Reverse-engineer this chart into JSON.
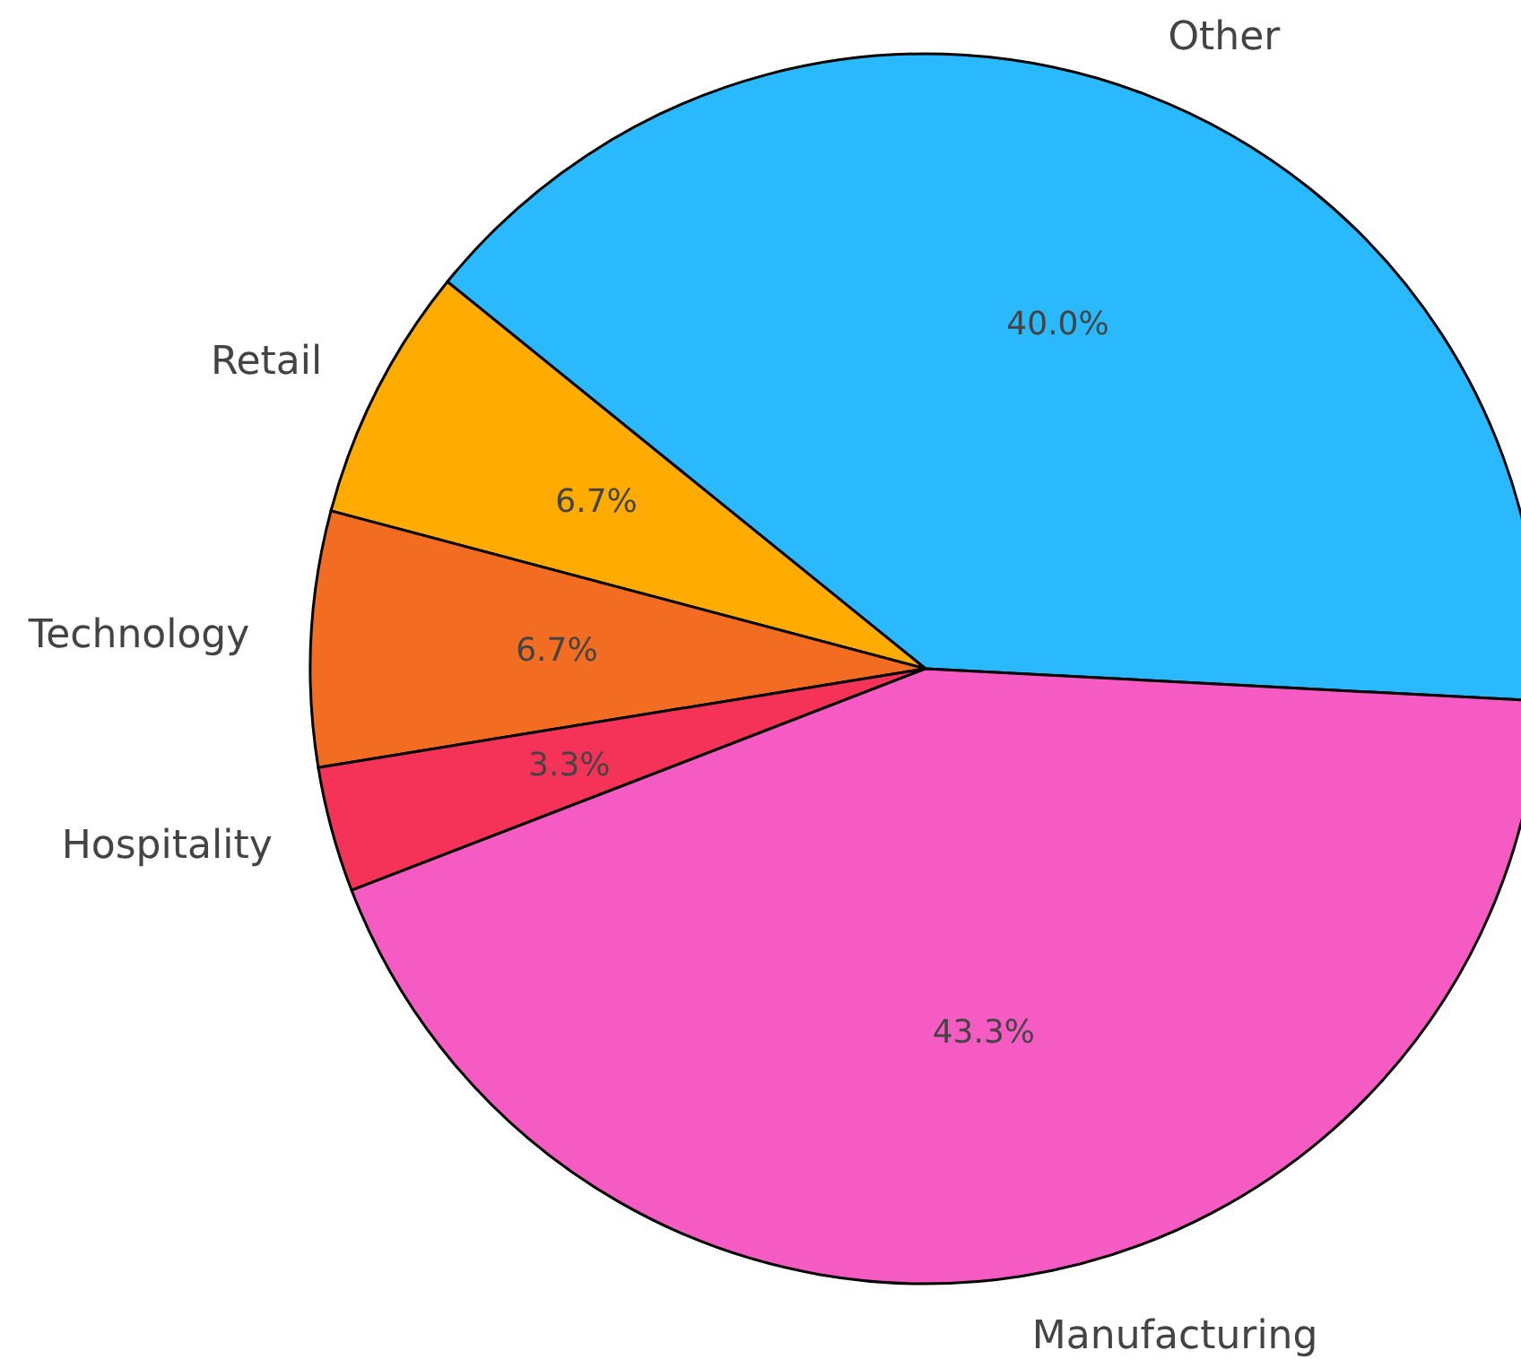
{
  "chart_data": {
    "type": "pie",
    "categories": [
      "Other",
      "Retail",
      "Technology",
      "Hospitality",
      "Manufacturing"
    ],
    "values": [
      40.0,
      6.7,
      6.7,
      3.3,
      43.3
    ],
    "value_labels": [
      "40.0%",
      "6.7%",
      "6.7%",
      "3.3%",
      "43.3%"
    ],
    "colors": [
      "#29b9fc",
      "#ffab00",
      "#f26c22",
      "#f53359",
      "#f65bc3"
    ]
  }
}
